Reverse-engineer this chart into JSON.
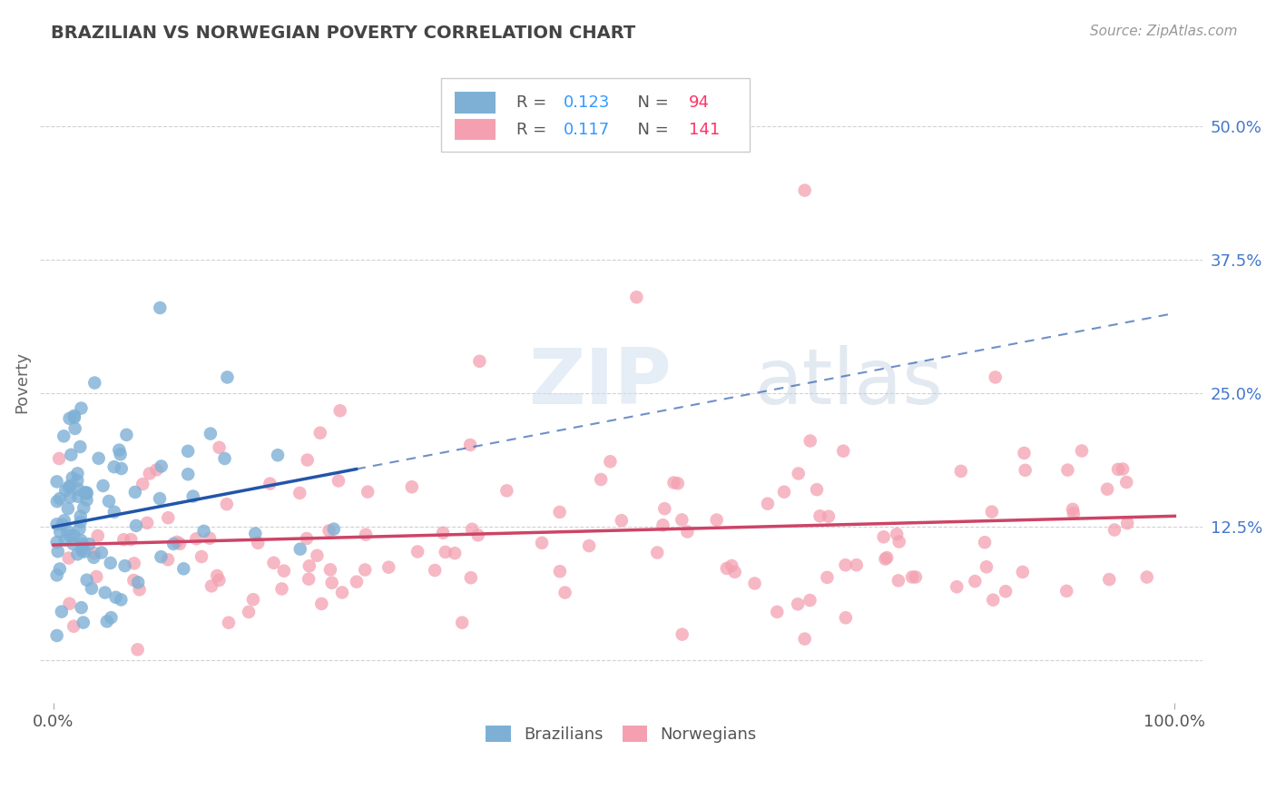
{
  "title": "BRAZILIAN VS NORWEGIAN POVERTY CORRELATION CHART",
  "source": "Source: ZipAtlas.com",
  "ylabel": "Poverty",
  "brazil_R": 0.123,
  "brazil_N": 94,
  "norway_R": 0.117,
  "norway_N": 141,
  "brazil_color": "#7EB0D5",
  "norway_color": "#F4A0B0",
  "brazil_line_color": "#2255AA",
  "norway_line_color": "#CC4466",
  "background_color": "#ffffff",
  "grid_color": "#cccccc",
  "title_color": "#444444",
  "ytick_color": "#4477CC",
  "source_color": "#999999",
  "legend_R_color": "#3399FF",
  "legend_N_color": "#FF3366",
  "watermark_color": "#dce8f5",
  "watermark_color2": "#c8d8e8"
}
